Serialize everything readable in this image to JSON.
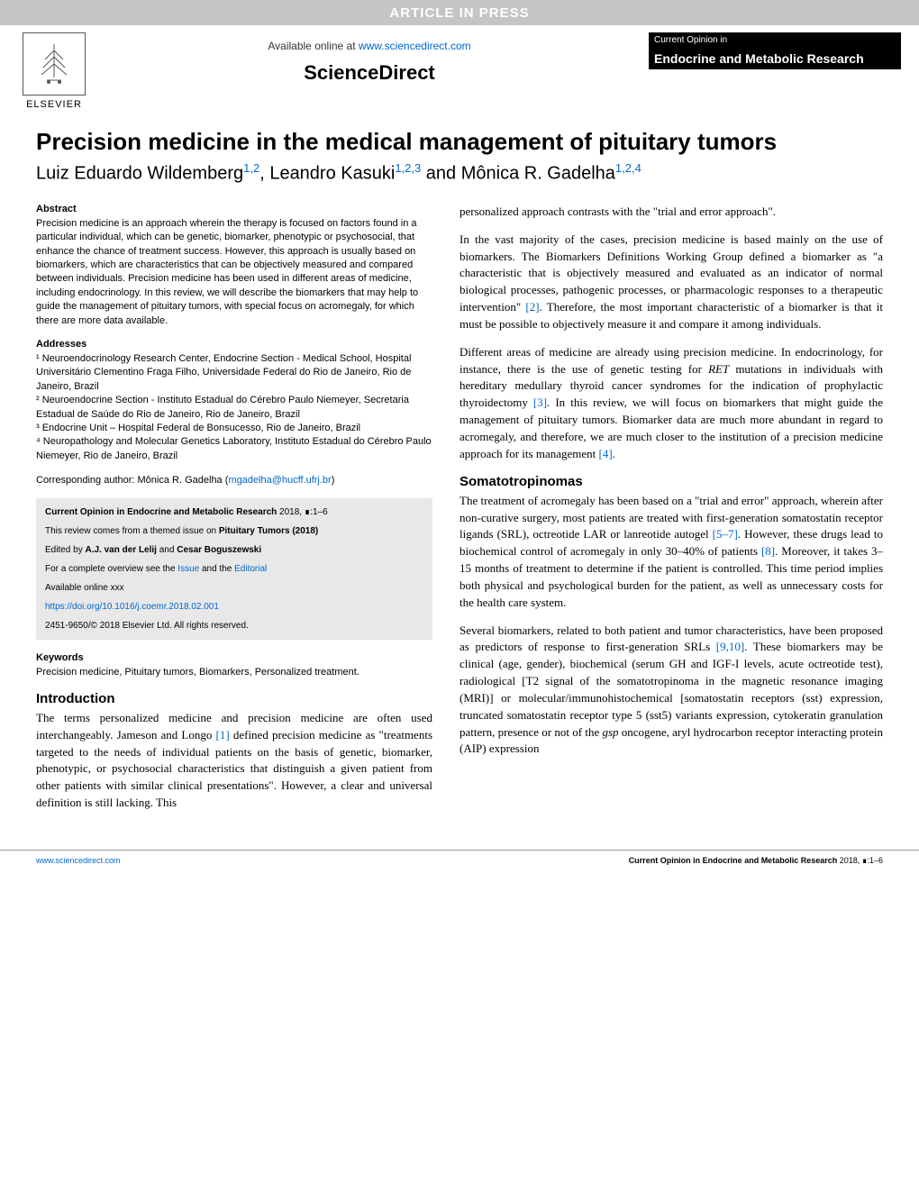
{
  "banner": "ARTICLE IN PRESS",
  "header": {
    "available_prefix": "Available online at ",
    "available_url": "www.sciencedirect.com",
    "sciencedirect": "ScienceDirect",
    "journal_top": "Current Opinion in",
    "journal_title": "Endocrine and Metabolic Research",
    "elsevier": "ELSEVIER"
  },
  "article": {
    "title": "Precision medicine in the medical management of pituitary tumors",
    "authors_html": "Luiz Eduardo Wildemberg<sup class='sup-link'>1,2</sup>, Leandro Kasuki<sup class='sup-link'>1,2,3</sup> and Mônica R. Gadelha<sup class='sup-link'>1,2,4</sup>"
  },
  "abstract": {
    "head": "Abstract",
    "text": "Precision medicine is an approach wherein the therapy is focused on factors found in a particular individual, which can be genetic, biomarker, phenotypic or psychosocial, that enhance the chance of treatment success. However, this approach is usually based on biomarkers, which are characteristics that can be objectively measured and compared between individuals. Precision medicine has been used in different areas of medicine, including endocrinology. In this review, we will describe the biomarkers that may help to guide the management of pituitary tumors, with special focus on acromegaly, for which there are more data available."
  },
  "addresses": {
    "head": "Addresses",
    "items": [
      "¹ Neuroendocrinology Research Center, Endocrine Section - Medical School, Hospital Universitário Clementino Fraga Filho, Universidade Federal do Rio de Janeiro, Rio de Janeiro, Brazil",
      "² Neuroendocrine Section - Instituto Estadual do Cérebro Paulo Niemeyer, Secretaria Estadual de Saúde do Rio de Janeiro, Rio de Janeiro, Brazil",
      "³ Endocrine Unit – Hospital Federal de Bonsucesso, Rio de Janeiro, Brazil",
      "⁴ Neuropathology and Molecular Genetics Laboratory, Instituto Estadual do Cérebro Paulo Niemeyer, Rio de Janeiro, Brazil"
    ]
  },
  "corresponding": {
    "prefix": "Corresponding author: Mônica R. Gadelha (",
    "email": "mgadelha@hucff.ufrj.br",
    "suffix": ")"
  },
  "infobox": {
    "line1_bold": "Current Opinion in Endocrine and Metabolic Research",
    "line1_rest": " 2018, ∎:1–6",
    "line2_prefix": "This review comes from a themed issue on ",
    "line2_bold": "Pituitary Tumors (2018)",
    "line3_prefix": "Edited by ",
    "line3_bold": "A.J. van der Lelij",
    "line3_and": " and ",
    "line3_bold2": "Cesar Boguszewski",
    "line4_prefix": "For a complete overview see the ",
    "line4_link1": "Issue",
    "line4_and": " and the ",
    "line4_link2": "Editorial",
    "line5": "Available online xxx",
    "doi": "https://doi.org/10.1016/j.coemr.2018.02.001",
    "copyright": "2451-9650/© 2018 Elsevier Ltd. All rights reserved."
  },
  "keywords": {
    "head": "Keywords",
    "text": "Precision medicine, Pituitary tumors, Biomarkers, Personalized treatment."
  },
  "sections": {
    "intro_head": "Introduction",
    "intro_p1": "The terms personalized medicine and precision medicine are often used interchangeably. Jameson and Longo [1] defined precision medicine as \"treatments targeted to the needs of individual patients on the basis of genetic, biomarker, phenotypic, or psychosocial characteristics that distinguish a given patient from other patients with similar clinical presentations\". However, a clear and universal definition is still lacking. This",
    "right_p1": "personalized approach contrasts with the \"trial and error approach\".",
    "right_p2": "In the vast majority of the cases, precision medicine is based mainly on the use of biomarkers. The Biomarkers Definitions Working Group defined a biomarker as \"a characteristic that is objectively measured and evaluated as an indicator of normal biological processes, pathogenic processes, or pharmacologic responses to a therapeutic intervention\" [2]. Therefore, the most important characteristic of a biomarker is that it must be possible to objectively measure it and compare it among individuals.",
    "right_p3": "Different areas of medicine are already using precision medicine. In endocrinology, for instance, there is the use of genetic testing for RET mutations in individuals with hereditary medullary thyroid cancer syndromes for the indication of prophylactic thyroidectomy [3]. In this review, we will focus on biomarkers that might guide the management of pituitary tumors. Biomarker data are much more abundant in regard to acromegaly, and therefore, we are much closer to the institution of a precision medicine approach for its management [4].",
    "somato_head": "Somatotropinomas",
    "somato_p1": "The treatment of acromegaly has been based on a \"trial and error\" approach, wherein after non-curative surgery, most patients are treated with first-generation somatostatin receptor ligands (SRL), octreotide LAR or lanreotide autogel [5–7]. However, these drugs lead to biochemical control of acromegaly in only 30–40% of patients [8]. Moreover, it takes 3–15 months of treatment to determine if the patient is controlled. This time period implies both physical and psychological burden for the patient, as well as unnecessary costs for the health care system.",
    "somato_p2": "Several biomarkers, related to both patient and tumor characteristics, have been proposed as predictors of response to first-generation SRLs [9,10]. These biomarkers may be clinical (age, gender), biochemical (serum GH and IGF-I levels, acute octreotide test), radiological [T2 signal of the somatotropinoma in the magnetic resonance imaging (MRI)] or molecular/immunohistochemical [somatostatin receptors (sst) expression, truncated somatostatin receptor type 5 (sst5) variants expression, cytokeratin granulation pattern, presence or not of the gsp oncogene, aryl hydrocarbon receptor interacting protein (AIP) expression"
  },
  "footer": {
    "left": "www.sciencedirect.com",
    "right_bold": "Current Opinion in Endocrine and Metabolic Research",
    "right_rest": " 2018, ∎:1–6"
  },
  "colors": {
    "banner_bg": "#c5c5c5",
    "banner_text": "#ffffff",
    "link": "#0066cc",
    "infobox_bg": "#e8e8e8",
    "journal_bg": "#000000",
    "journal_text": "#ffffff"
  }
}
